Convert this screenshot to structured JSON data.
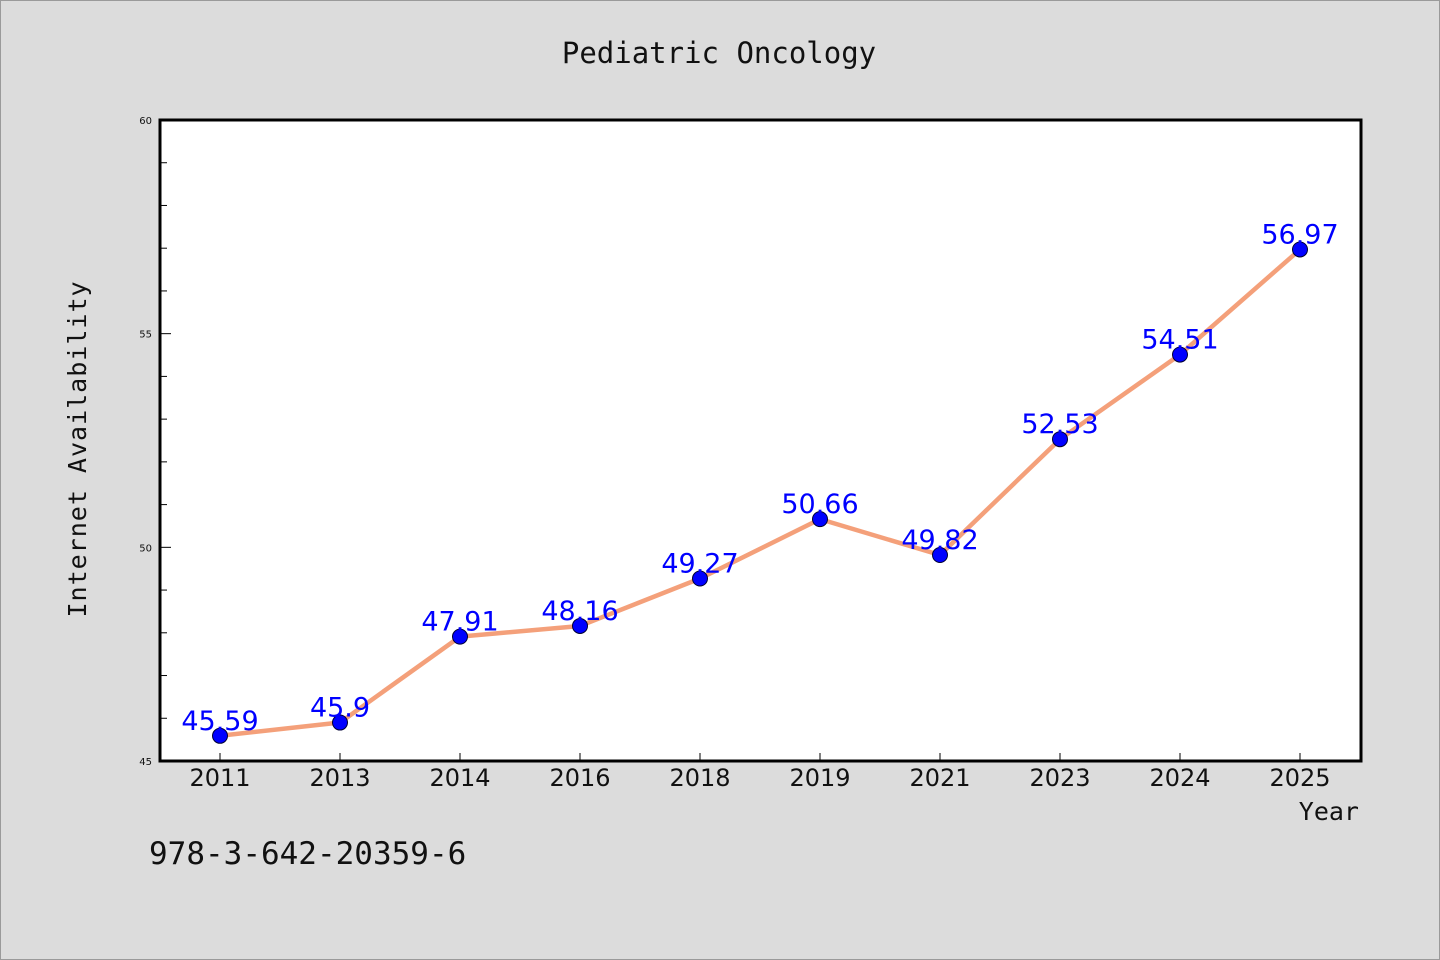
{
  "figure": {
    "footnote": "978-3-642-20359-6"
  },
  "chart_data": {
    "type": "line",
    "title": "Pediatric Oncology",
    "xlabel": "Year",
    "ylabel": "Internet Availability",
    "categories": [
      "2011",
      "2013",
      "2014",
      "2016",
      "2018",
      "2019",
      "2021",
      "2023",
      "2024",
      "2025"
    ],
    "values": [
      45.59,
      45.9,
      47.91,
      48.16,
      49.27,
      50.66,
      49.82,
      52.53,
      54.51,
      56.97
    ],
    "data_labels": [
      "45.59",
      "45.9",
      "47.91",
      "48.16",
      "49.27",
      "50.66",
      "49.82",
      "52.53",
      "54.51",
      "56.97"
    ],
    "ylim": [
      45,
      60
    ],
    "yticks": [
      45,
      50,
      55,
      60
    ],
    "ytick_labels": [
      "45",
      "50",
      "55",
      "60"
    ],
    "grid": false,
    "legend": "none",
    "colors": {
      "line": "#f4a07a",
      "marker": "#0000ff",
      "data_label": "#0000ff",
      "background": "#dcdcdc",
      "plot_area": "#ffffff"
    }
  }
}
